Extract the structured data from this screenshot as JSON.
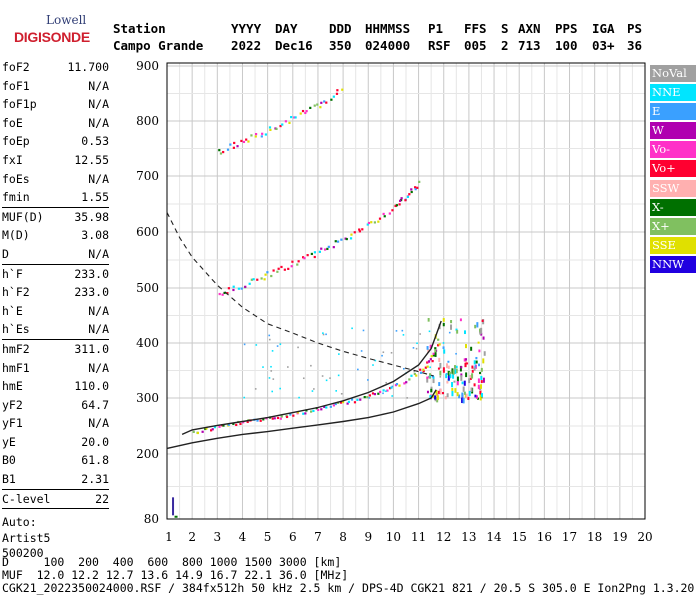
{
  "logo": {
    "line1": "Lowell",
    "line2": "DIGISONDE"
  },
  "header": {
    "labels": [
      "Station",
      "YYYY",
      "DAY",
      "DDD",
      "HHMMSS",
      "P1",
      "FFS",
      "S",
      "AXN",
      "PPS",
      "IGA",
      "PS"
    ],
    "values": [
      "Campo Grande",
      "2022",
      "Dec16",
      "350",
      "024000",
      "RSF",
      "005",
      "2",
      "713",
      "100",
      "03+",
      "36"
    ]
  },
  "params": [
    {
      "label": "foF2",
      "value": "11.700"
    },
    {
      "label": "foF1",
      "value": "N/A"
    },
    {
      "label": "foF1p",
      "value": "N/A"
    },
    {
      "label": "foE",
      "value": "N/A"
    },
    {
      "label": "foEp",
      "value": "0.53"
    },
    {
      "label": "fxI",
      "value": "12.55"
    },
    {
      "label": "foEs",
      "value": "N/A"
    },
    {
      "label": "fmin",
      "value": "1.55"
    },
    {
      "label": "MUF(D)",
      "value": "35.98"
    },
    {
      "label": "M(D)",
      "value": "3.08"
    },
    {
      "label": "D",
      "value": "N/A"
    },
    {
      "label": "h`F",
      "value": "233.0"
    },
    {
      "label": "h`F2",
      "value": "233.0"
    },
    {
      "label": "h`E",
      "value": "N/A"
    },
    {
      "label": "h`Es",
      "value": "N/A"
    },
    {
      "label": "hmF2",
      "value": "311.0"
    },
    {
      "label": "hmF1",
      "value": "N/A"
    },
    {
      "label": "hmE",
      "value": "110.0"
    },
    {
      "label": "yF2",
      "value": "64.7"
    },
    {
      "label": "yF1",
      "value": "N/A"
    },
    {
      "label": "yE",
      "value": "20.0"
    },
    {
      "label": "B0",
      "value": "61.8"
    },
    {
      "label": "B1",
      "value": "2.31"
    },
    {
      "label": "C-level",
      "value": "22"
    }
  ],
  "auto": {
    "line1": "Auto:",
    "line2": "Artist5",
    "line3": "500200"
  },
  "legend": [
    {
      "label": "NoVal",
      "color": "#a0a0a0"
    },
    {
      "label": "NNE",
      "color": "#00e5ff"
    },
    {
      "label": "E",
      "color": "#3aa0ff"
    },
    {
      "label": "W",
      "color": "#b000b0"
    },
    {
      "label": "Vo-",
      "color": "#ff30c8"
    },
    {
      "label": "Vo+",
      "color": "#ff0030"
    },
    {
      "label": "SSW",
      "color": "#ffb0b0"
    },
    {
      "label": "X-",
      "color": "#007000"
    },
    {
      "label": "X+",
      "color": "#80c060"
    },
    {
      "label": "SSE",
      "color": "#e0e000"
    },
    {
      "label": "NNW",
      "color": "#2000e0"
    }
  ],
  "footer": {
    "line1": "D     100  200  400  600  800 1000 1500 3000 [km]",
    "line2": "MUF  12.0 12.2 12.7 13.6 14.9 16.7 22.1 36.0 [MHz]",
    "line3": "CGK21_2022350024000.RSF / 384fx512h 50 kHz 2.5 km / DPS-4D CGK21 821 / 20.5 S 305.0 E Ion2Png 1.3.20"
  },
  "chart_data": {
    "type": "scatter",
    "xlim": [
      1,
      20
    ],
    "ylim": [
      80,
      900
    ],
    "x_ticks": [
      "1",
      "2",
      "3",
      "4",
      "5",
      "6",
      "7",
      "8",
      "9",
      "10",
      "11",
      "12",
      "13",
      "14",
      "15",
      "16",
      "17",
      "18",
      "19",
      "20"
    ],
    "y_ticks": [
      "80",
      "200",
      "300",
      "400",
      "500",
      "600",
      "700",
      "800",
      "900"
    ],
    "y_tick_values": [
      80,
      200,
      300,
      400,
      500,
      600,
      700,
      800,
      900
    ],
    "grid": true,
    "series": [
      {
        "name": "Vo+",
        "color": "#ff0030",
        "style": "dots",
        "x": [
          2.0,
          3.0,
          4.0,
          5.0,
          6.0,
          7.0,
          8.0,
          9.0,
          10.0,
          11.0,
          11.5,
          11.8
        ],
        "y": [
          240,
          250,
          258,
          265,
          273,
          282,
          292,
          305,
          322,
          348,
          372,
          410
        ]
      },
      {
        "name": "Vo+",
        "color": "#ff0030",
        "style": "dots",
        "x": [
          3.0,
          4.0,
          5.0,
          6.0,
          7.0,
          8.0,
          9.0,
          10.0,
          10.5,
          11.0
        ],
        "y": [
          490,
          505,
          525,
          545,
          565,
          590,
          615,
          645,
          665,
          690
        ]
      },
      {
        "name": "Vo+",
        "color": "#ff0030",
        "style": "dots",
        "x": [
          3.0,
          4.0,
          5.0,
          6.0,
          7.0,
          8.0
        ],
        "y": [
          745,
          765,
          785,
          808,
          830,
          860
        ]
      }
    ],
    "profile_curves": [
      {
        "style": "solid",
        "x": [
          1.0,
          2.0,
          3.0,
          4.0,
          5.0,
          6.0,
          7.0,
          8.0,
          9.0,
          10.0,
          11.0,
          11.5,
          11.7
        ],
        "y": [
          210,
          220,
          228,
          235,
          240,
          246,
          252,
          258,
          265,
          275,
          290,
          300,
          315
        ]
      },
      {
        "style": "solid",
        "x": [
          1.6,
          2.0,
          3.0,
          4.0,
          5.0,
          6.0,
          7.0,
          8.0,
          9.0,
          10.0,
          11.0,
          11.5,
          11.9
        ],
        "y": [
          235,
          243,
          251,
          258,
          265,
          274,
          283,
          295,
          310,
          330,
          360,
          390,
          440
        ]
      },
      {
        "style": "dashed",
        "x": [
          1.0,
          1.5,
          2.0,
          2.5,
          3.0,
          4.0,
          5.0,
          6.0,
          7.0,
          8.0,
          9.0,
          10.0,
          11.0,
          11.6
        ],
        "y": [
          635,
          590,
          555,
          530,
          505,
          465,
          435,
          418,
          400,
          385,
          372,
          360,
          348,
          340
        ]
      }
    ]
  }
}
